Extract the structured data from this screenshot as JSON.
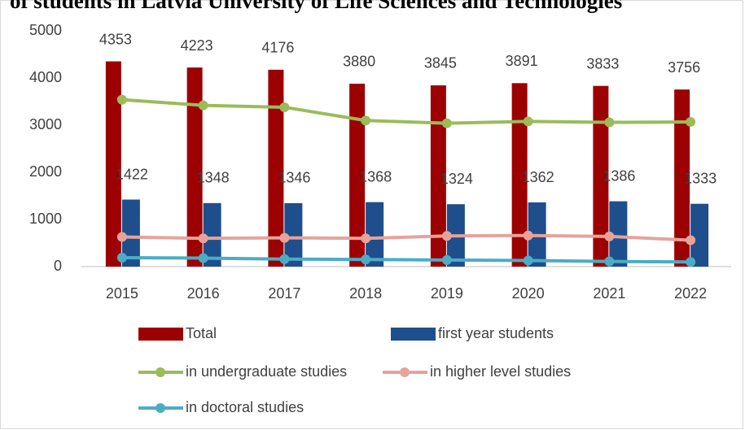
{
  "chart_data": {
    "type": "bar_line",
    "title": "of students in Latvia University of Life Sciences and Technologies",
    "categories": [
      "2015",
      "2016",
      "2017",
      "2018",
      "2019",
      "2020",
      "2021",
      "2022"
    ],
    "series": [
      {
        "name": "Total",
        "type": "bar",
        "color": "#9c0000",
        "values": [
          4353,
          4223,
          4176,
          3880,
          3845,
          3891,
          3833,
          3756
        ]
      },
      {
        "name": "first year students",
        "type": "bar",
        "color": "#1f4e8c",
        "values": [
          1422,
          1348,
          1346,
          1368,
          1324,
          1362,
          1386,
          1333
        ]
      },
      {
        "name": "in undergraduate studies",
        "type": "line",
        "color": "#9bbb59",
        "values": [
          3540,
          3420,
          3380,
          3100,
          3040,
          3080,
          3060,
          3070
        ]
      },
      {
        "name": "in higher level studies",
        "type": "line",
        "color": "#e6a39a",
        "values": [
          630,
          600,
          610,
          600,
          650,
          660,
          640,
          560
        ]
      },
      {
        "name": "in doctoral studies",
        "type": "line",
        "color": "#4bacc6",
        "values": [
          190,
          180,
          160,
          150,
          140,
          130,
          110,
          100
        ]
      }
    ],
    "ylim": [
      0,
      5000
    ],
    "yticks": [
      0,
      1000,
      2000,
      3000,
      4000,
      5000
    ],
    "grid": false,
    "legend": "bottom"
  }
}
